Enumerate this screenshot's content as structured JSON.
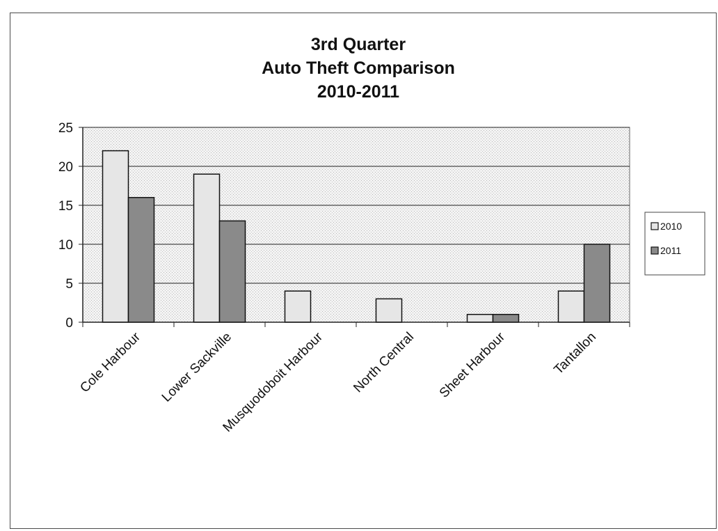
{
  "chart_data": {
    "type": "bar",
    "title_lines": [
      "3rd Quarter",
      "Auto Theft Comparison",
      "2010-2011"
    ],
    "categories": [
      "Cole Harbour",
      "Lower Sackville",
      "Musquodoboit Harbour",
      "North Central",
      "Sheet Harbour",
      "Tantallon"
    ],
    "series": [
      {
        "name": "2010",
        "values": [
          22,
          19,
          4,
          3,
          1,
          4
        ],
        "color": "#e6e6e6"
      },
      {
        "name": "2011",
        "values": [
          16,
          13,
          0,
          0,
          1,
          10
        ],
        "color": "#8a8a8a"
      }
    ],
    "ylim": [
      0,
      25
    ],
    "yticks": [
      0,
      5,
      10,
      15,
      20,
      25
    ],
    "grid": true,
    "legend_position": "right",
    "plot_background": "#d9d9d9"
  }
}
